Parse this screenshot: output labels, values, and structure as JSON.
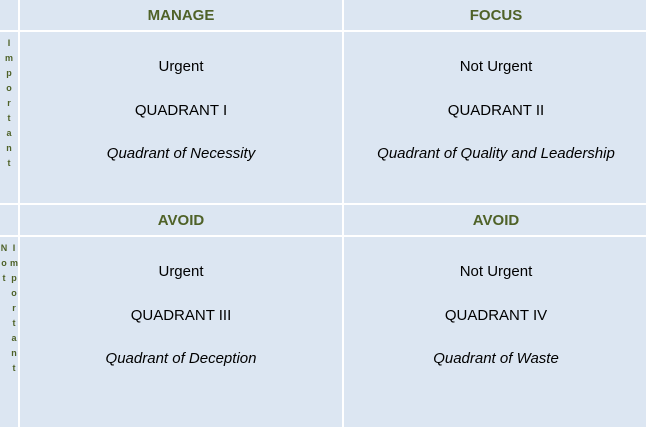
{
  "rows": [
    {
      "headers": [
        "MANAGE",
        "FOCUS"
      ],
      "side": "Important",
      "cells": [
        {
          "urgency": "Urgent",
          "quadrant": "QUADRANT I",
          "name": "Quadrant of Necessity"
        },
        {
          "urgency": "Not Urgent",
          "quadrant": "QUADRANT II",
          "name": "Quadrant of Quality and Leadership"
        }
      ]
    },
    {
      "headers": [
        "AVOID",
        "AVOID"
      ],
      "side": "Not Important",
      "cells": [
        {
          "urgency": "Urgent",
          "quadrant": "QUADRANT III",
          "name": "Quadrant of Deception"
        },
        {
          "urgency": "Not Urgent",
          "quadrant": "QUADRANT IV",
          "name": "Quadrant of Waste"
        }
      ]
    }
  ]
}
